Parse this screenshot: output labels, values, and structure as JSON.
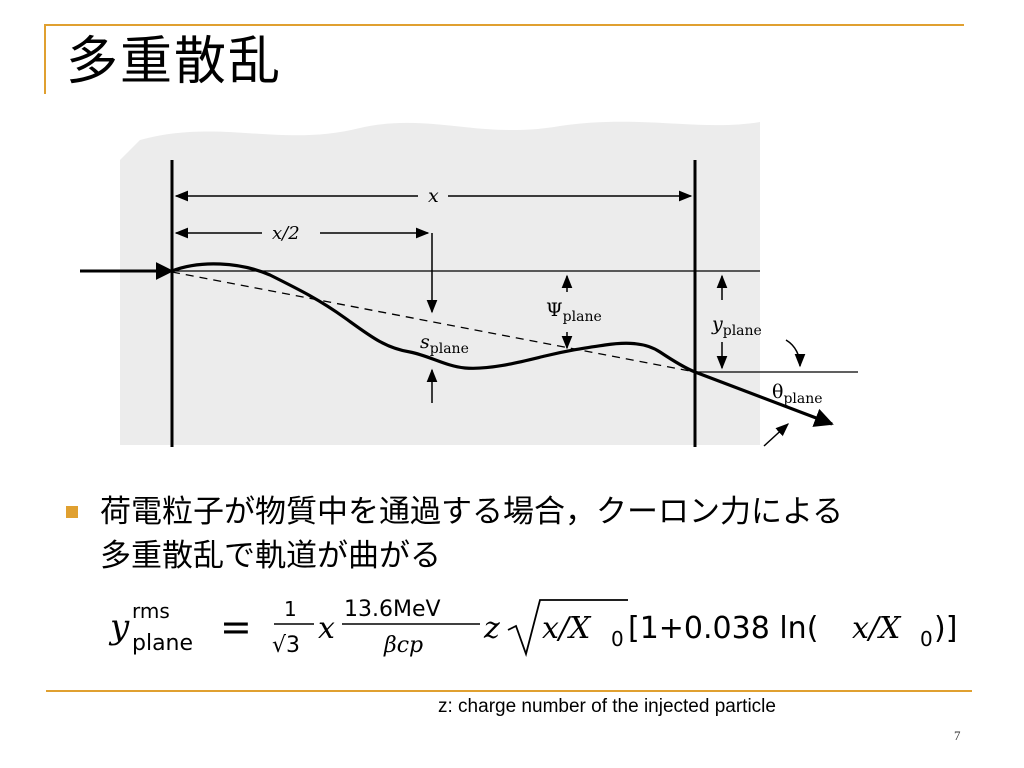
{
  "slide": {
    "title": "多重散乱",
    "accent_color": "#E0A030",
    "bullet_line1": "荷電粒子が物質中を通過する場合，クーロン力による",
    "bullet_line2": "多重散乱で軌道が曲がる",
    "note": "z: charge number of the injected particle",
    "page_number": "7"
  },
  "diagram": {
    "label_x": "x",
    "label_half_x": "x/2",
    "label_psi": "Ψ",
    "label_s": "s",
    "label_y": "y",
    "label_theta": "θ",
    "subscript": "plane"
  },
  "formula": {
    "lhs_var": "y",
    "lhs_sup": "rms",
    "lhs_sub": "plane",
    "equals": "=",
    "frac1_num": "1",
    "frac1_den": "√3",
    "x": "x",
    "frac2_num": "13.6MeV",
    "frac2_den": "βcp",
    "z": "z",
    "sqrt_arg": "x/X",
    "sqrt_sub": "0",
    "bracket_text": "[1+0.038 ln(",
    "bracket_x": "x/X",
    "bracket_sub": "0",
    "bracket_close": ")]"
  }
}
